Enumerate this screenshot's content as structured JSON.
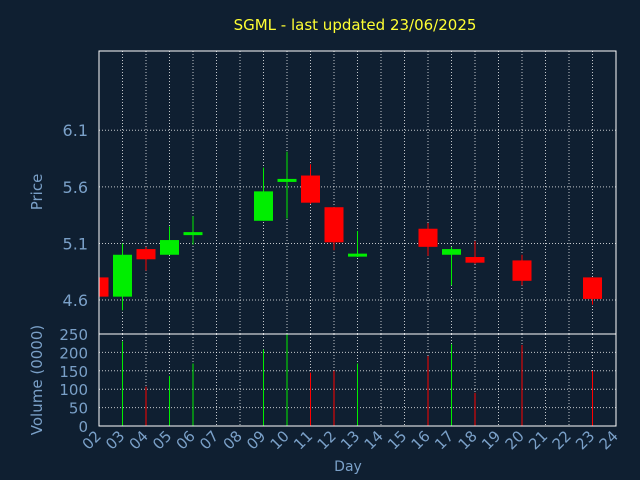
{
  "chart_data": {
    "type": "candlestick",
    "title": "SGML - last updated 23/06/2025",
    "price_panel": {
      "ylabel": "Price",
      "yticks": [
        4.6,
        5.1,
        5.6,
        6.1
      ],
      "ytick_labels": [
        "4.6",
        "5.1",
        "5.6",
        "6.1"
      ],
      "ylim": [
        4.3,
        6.8
      ]
    },
    "volume_panel": {
      "ylabel": "Volume (0000)",
      "yticks": [
        0,
        50,
        100,
        150,
        200,
        250
      ],
      "ytick_labels": [
        "0",
        "50",
        "100",
        "150",
        "200",
        "250"
      ],
      "ylim": [
        0,
        250
      ]
    },
    "xlabel": "Day",
    "x_ticks": [
      "02",
      "03",
      "04",
      "05",
      "06",
      "07",
      "08",
      "09",
      "10",
      "11",
      "12",
      "13",
      "14",
      "15",
      "16",
      "17",
      "18",
      "19",
      "20",
      "21",
      "22",
      "23",
      "24"
    ],
    "grid": true,
    "colors": {
      "up": "#00ee00",
      "down": "#ff0000",
      "title": "#ffff33",
      "axis_text": "#7aa0c8",
      "background": "#0f1f31",
      "frame": "#ffffff"
    },
    "candles": [
      {
        "day": "02",
        "open": 4.8,
        "high": 4.8,
        "low": 4.63,
        "close": 4.63,
        "volume": 0
      },
      {
        "day": "03",
        "open": 4.63,
        "high": 5.1,
        "low": 4.51,
        "close": 5.0,
        "volume": 230
      },
      {
        "day": "04",
        "open": 5.05,
        "high": 5.07,
        "low": 4.86,
        "close": 4.96,
        "volume": 107
      },
      {
        "day": "05",
        "open": 5.0,
        "high": 5.25,
        "low": 5.0,
        "close": 5.13,
        "volume": 136
      },
      {
        "day": "06",
        "open": 5.18,
        "high": 5.34,
        "low": 5.09,
        "close": 5.2,
        "volume": 170
      },
      {
        "day": "09",
        "open": 5.3,
        "high": 5.77,
        "low": 5.3,
        "close": 5.56,
        "volume": 208
      },
      {
        "day": "10",
        "open": 5.66,
        "high": 5.91,
        "low": 5.32,
        "close": 5.67,
        "volume": 250
      },
      {
        "day": "11",
        "open": 5.7,
        "high": 5.8,
        "low": 5.45,
        "close": 5.46,
        "volume": 145
      },
      {
        "day": "12",
        "open": 5.42,
        "high": 5.42,
        "low": 5.04,
        "close": 5.11,
        "volume": 150
      },
      {
        "day": "13",
        "open": 5.0,
        "high": 5.21,
        "low": 4.98,
        "close": 5.01,
        "volume": 170
      },
      {
        "day": "16",
        "open": 5.23,
        "high": 5.28,
        "low": 4.99,
        "close": 5.07,
        "volume": 190
      },
      {
        "day": "17",
        "open": 5.0,
        "high": 5.07,
        "low": 4.73,
        "close": 5.05,
        "volume": 222
      },
      {
        "day": "18",
        "open": 4.98,
        "high": 5.12,
        "low": 4.92,
        "close": 4.93,
        "volume": 90
      },
      {
        "day": "20",
        "open": 4.95,
        "high": 5.0,
        "low": 4.73,
        "close": 4.77,
        "volume": 220
      },
      {
        "day": "23",
        "open": 4.8,
        "high": 4.8,
        "low": 4.56,
        "close": 4.61,
        "volume": 150
      }
    ]
  }
}
